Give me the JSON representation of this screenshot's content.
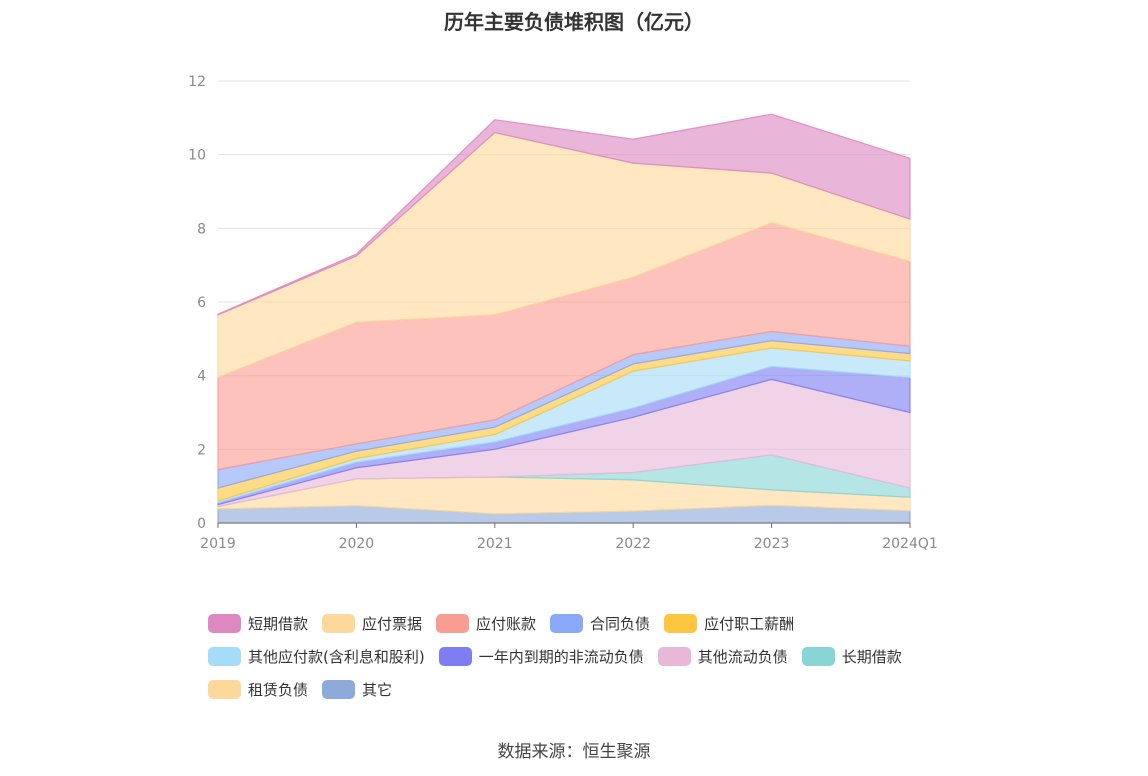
{
  "title": "历年主要负债堆积图（亿元）",
  "source": "数据来源：恒生聚源",
  "colors": {
    "短期借款": "#dc88c1",
    "应付票据": "#fdd89b",
    "应付账款": "#fb9c93",
    "合同负债": "#8aa8f8",
    "应付职工薪酬": "#fdc63e",
    "其他应付款(含利息和股利)": "#a6dcf7",
    "一年内到期的非流动负债": "#7e7ef2",
    "其他流动负债": "#e9b8d9",
    "长期借款": "#89d5d6",
    "租赁负债": "#fdd89b",
    "其它": "#8eaadb"
  },
  "legend_rows": [
    [
      "短期借款",
      "应付票据",
      "应付账款",
      "合同负债",
      "应付职工薪酬"
    ],
    [
      "其他应付款(含利息和股利)",
      "一年内到期的非流动负债",
      "其他流动负债",
      "长期借款"
    ],
    [
      "租赁负债",
      "其它"
    ]
  ],
  "chart_data": {
    "type": "area",
    "stacked": true,
    "title": "历年主要负债堆积图（亿元）",
    "x": [
      "2019",
      "2020",
      "2021",
      "2022",
      "2023",
      "2024Q1"
    ],
    "ylim": [
      0,
      12
    ],
    "yticks": [
      0,
      2,
      4,
      6,
      8,
      10,
      12
    ],
    "grid": true,
    "legend_position": "bottom",
    "series": [
      {
        "name": "其它",
        "values": [
          0.38,
          0.47,
          0.25,
          0.32,
          0.48,
          0.33
        ]
      },
      {
        "name": "租赁负债",
        "values": [
          0.07,
          0.73,
          1.0,
          0.85,
          0.42,
          0.37
        ]
      },
      {
        "name": "长期借款",
        "values": [
          0.0,
          0.0,
          0.0,
          0.2,
          0.95,
          0.25
        ]
      },
      {
        "name": "其他流动负债",
        "values": [
          0.05,
          0.3,
          0.75,
          1.5,
          2.05,
          2.05
        ]
      },
      {
        "name": "一年内到期的非流动负债",
        "values": [
          0.05,
          0.15,
          0.2,
          0.25,
          0.35,
          0.95
        ]
      },
      {
        "name": "其他应付款(含利息和股利)",
        "values": [
          0.05,
          0.1,
          0.2,
          1.0,
          0.5,
          0.45
        ]
      },
      {
        "name": "应付职工薪酬",
        "values": [
          0.35,
          0.2,
          0.2,
          0.2,
          0.2,
          0.2
        ]
      },
      {
        "name": "合同负债",
        "values": [
          0.5,
          0.2,
          0.2,
          0.25,
          0.25,
          0.2
        ]
      },
      {
        "name": "应付账款",
        "values": [
          2.5,
          3.3,
          2.85,
          2.1,
          2.95,
          2.3
        ]
      },
      {
        "name": "应付票据",
        "values": [
          1.7,
          1.8,
          4.95,
          3.1,
          1.35,
          1.15
        ]
      },
      {
        "name": "短期借款",
        "values": [
          0.02,
          0.05,
          0.35,
          0.65,
          1.6,
          1.65
        ]
      }
    ]
  }
}
